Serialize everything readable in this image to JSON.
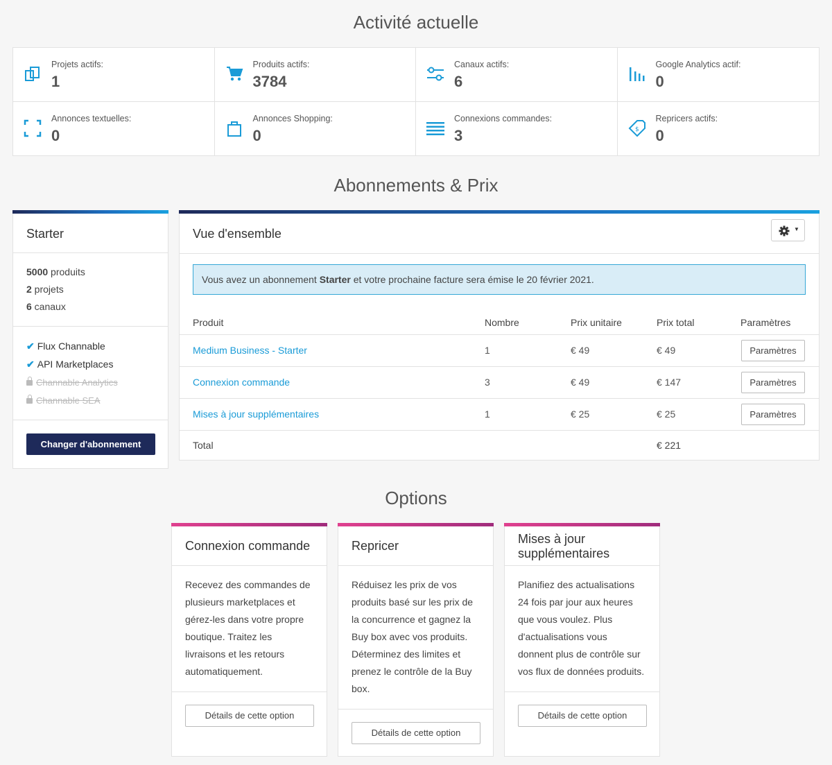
{
  "activity": {
    "title": "Activité actuelle",
    "stats": [
      {
        "label": "Projets actifs:",
        "value": "1",
        "icon": "projects-icon"
      },
      {
        "label": "Produits actifs:",
        "value": "3784",
        "icon": "cart-icon"
      },
      {
        "label": "Canaux actifs:",
        "value": "6",
        "icon": "sliders-icon"
      },
      {
        "label": "Google Analytics actif:",
        "value": "0",
        "icon": "analytics-bars-icon"
      },
      {
        "label": "Annonces textuelles:",
        "value": "0",
        "icon": "frame-corners-icon"
      },
      {
        "label": "Annonces Shopping:",
        "value": "0",
        "icon": "shopping-bag-icon"
      },
      {
        "label": "Connexions commandes:",
        "value": "3",
        "icon": "list-lines-icon"
      },
      {
        "label": "Repricers actifs:",
        "value": "0",
        "icon": "price-tag-icon"
      }
    ],
    "accent": "#1a9bd7"
  },
  "subscriptions": {
    "title": "Abonnements & Prix",
    "plan": {
      "name": "Starter",
      "limits": [
        {
          "bold": "5000",
          "text": " produits"
        },
        {
          "bold": "2",
          "text": " projets"
        },
        {
          "bold": "6",
          "text": " canaux"
        }
      ],
      "features": [
        {
          "label": "Flux Channable",
          "enabled": true
        },
        {
          "label": "API Marketplaces",
          "enabled": true
        },
        {
          "label": "Channable Analytics",
          "enabled": false
        },
        {
          "label": "Channable SEA",
          "enabled": false
        }
      ],
      "change_button": "Changer d'abonnement"
    },
    "overview": {
      "title": "Vue d'ensemble",
      "notice_prefix": "Vous avez un abonnement ",
      "notice_bold": "Starter",
      "notice_suffix": " et votre prochaine facture sera émise le 20 février 2021.",
      "columns": [
        "Produit",
        "Nombre",
        "Prix unitaire",
        "Prix total",
        "Paramètres"
      ],
      "rows": [
        {
          "product": "Medium Business - Starter",
          "count": "1",
          "unit": "€ 49",
          "total": "€ 49",
          "action": "Paramètres"
        },
        {
          "product": "Connexion commande",
          "count": "3",
          "unit": "€ 49",
          "total": "€ 147",
          "action": "Paramètres"
        },
        {
          "product": "Mises à jour supplémentaires",
          "count": "1",
          "unit": "€ 25",
          "total": "€ 25",
          "action": "Paramètres"
        }
      ],
      "total_label": "Total",
      "total_value": "€ 221"
    }
  },
  "options": {
    "title": "Options",
    "cards": [
      {
        "title": "Connexion commande",
        "lines": [
          "Recevez des commandes de",
          "plusieurs marketplaces et",
          "gérez-les dans votre propre",
          "boutique. Traitez les",
          "livraisons et les retours",
          "automatiquement."
        ],
        "button": "Détails de cette option"
      },
      {
        "title": "Repricer",
        "lines": [
          "Réduisez les prix de vos",
          "produits basé sur les prix de",
          "la concurrence et gagnez la",
          "Buy box avec vos produits.",
          "Déterminez des limites et",
          "prenez le contrôle de la Buy",
          "box."
        ],
        "button": "Détails de cette option"
      },
      {
        "title_lines": [
          "Mises à jour",
          "supplémentaires"
        ],
        "lines": [
          "Planifiez des actualisations",
          "24 fois par jour aux heures",
          "que vous voulez. Plus",
          "d'actualisations vous",
          "donnent plus de contrôle sur",
          "vos flux de données produits."
        ],
        "button": "Détails de cette option"
      }
    ]
  }
}
